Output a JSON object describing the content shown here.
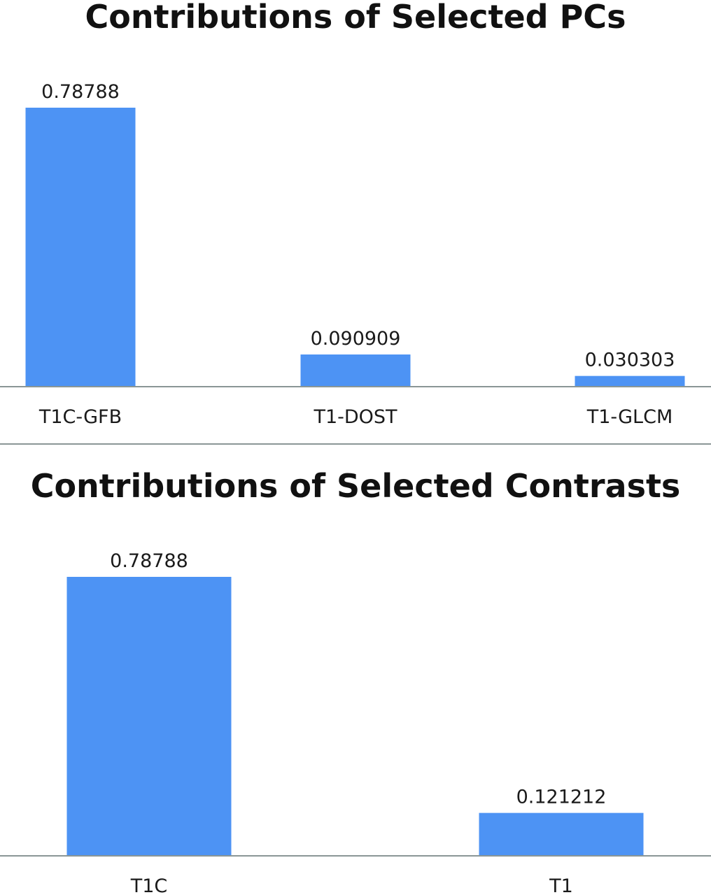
{
  "chart_data": [
    {
      "type": "bar",
      "title": "Contributions of Selected PCs",
      "categories": [
        "T1C-GFB",
        "T1-DOST",
        "T1-GLCM"
      ],
      "values": [
        0.78788,
        0.090909,
        0.030303
      ],
      "value_labels": [
        "0.78788",
        "0.090909",
        "0.030303"
      ],
      "xlabel": "",
      "ylabel": "",
      "ylim": [
        0,
        0.78788
      ],
      "grid": false,
      "bar_color": "#4d93f4",
      "axis_color": "#8a9696"
    },
    {
      "type": "bar",
      "title": "Contributions of Selected Contrasts",
      "categories": [
        "T1C",
        "T1"
      ],
      "values": [
        0.78788,
        0.121212
      ],
      "value_labels": [
        "0.78788",
        "0.121212"
      ],
      "xlabel": "",
      "ylabel": "",
      "ylim": [
        0,
        0.78788
      ],
      "grid": false,
      "bar_color": "#4d93f4",
      "axis_color": "#8a9696"
    }
  ]
}
